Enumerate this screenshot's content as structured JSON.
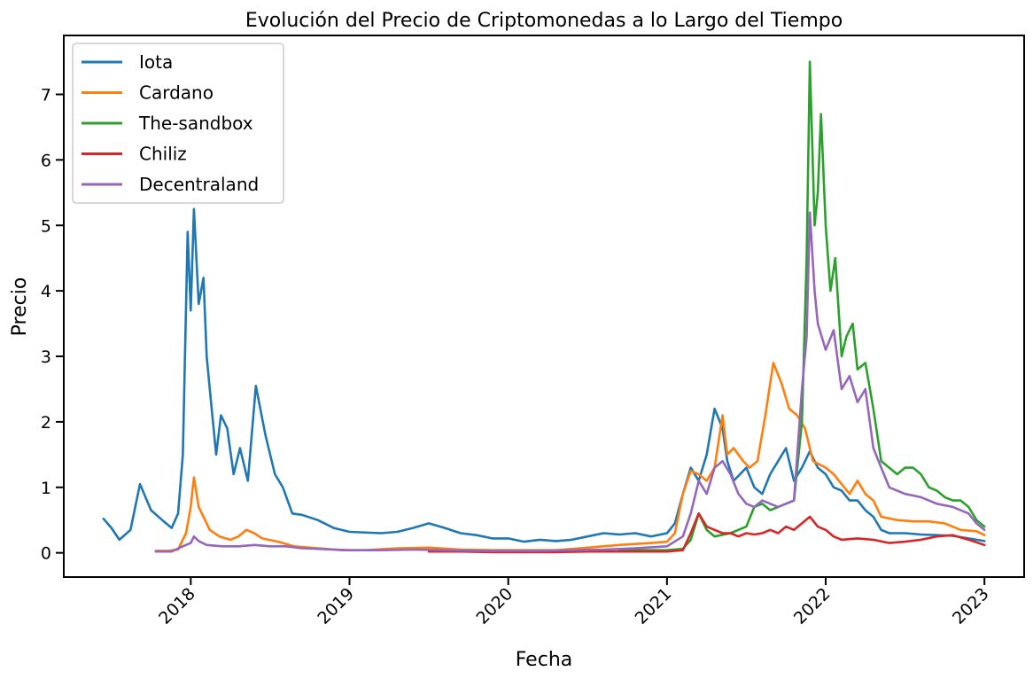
{
  "chart_data": {
    "type": "line",
    "title": "Evolución del Precio de Criptomonedas a lo Largo del Tiempo",
    "xlabel": "Fecha",
    "ylabel": "Precio",
    "xlim": [
      2017.2,
      2023.25
    ],
    "ylim": [
      -0.37,
      7.9
    ],
    "x_ticks": [
      2018,
      2019,
      2020,
      2021,
      2022,
      2023
    ],
    "x_tick_labels": [
      "2018",
      "2019",
      "2020",
      "2021",
      "2022",
      "2023"
    ],
    "y_ticks": [
      0,
      1,
      2,
      3,
      4,
      5,
      6,
      7
    ],
    "y_tick_labels": [
      "0",
      "1",
      "2",
      "3",
      "4",
      "5",
      "6",
      "7"
    ],
    "grid": false,
    "legend_position": "top-left",
    "series": [
      {
        "name": "Iota",
        "color": "#1f77b4",
        "points": [
          [
            2017.45,
            0.52
          ],
          [
            2017.5,
            0.38
          ],
          [
            2017.55,
            0.2
          ],
          [
            2017.62,
            0.35
          ],
          [
            2017.68,
            1.05
          ],
          [
            2017.75,
            0.65
          ],
          [
            2017.82,
            0.5
          ],
          [
            2017.88,
            0.38
          ],
          [
            2017.92,
            0.6
          ],
          [
            2017.95,
            1.5
          ],
          [
            2017.98,
            4.9
          ],
          [
            2018.0,
            3.7
          ],
          [
            2018.02,
            5.25
          ],
          [
            2018.05,
            3.8
          ],
          [
            2018.08,
            4.2
          ],
          [
            2018.1,
            3.0
          ],
          [
            2018.12,
            2.5
          ],
          [
            2018.16,
            1.5
          ],
          [
            2018.19,
            2.1
          ],
          [
            2018.23,
            1.9
          ],
          [
            2018.27,
            1.2
          ],
          [
            2018.31,
            1.6
          ],
          [
            2018.36,
            1.1
          ],
          [
            2018.41,
            2.55
          ],
          [
            2018.47,
            1.8
          ],
          [
            2018.53,
            1.2
          ],
          [
            2018.58,
            1.0
          ],
          [
            2018.64,
            0.6
          ],
          [
            2018.7,
            0.58
          ],
          [
            2018.8,
            0.5
          ],
          [
            2018.9,
            0.38
          ],
          [
            2019.0,
            0.32
          ],
          [
            2019.2,
            0.3
          ],
          [
            2019.3,
            0.32
          ],
          [
            2019.4,
            0.38
          ],
          [
            2019.5,
            0.45
          ],
          [
            2019.6,
            0.38
          ],
          [
            2019.7,
            0.3
          ],
          [
            2019.8,
            0.27
          ],
          [
            2019.9,
            0.22
          ],
          [
            2020.0,
            0.22
          ],
          [
            2020.1,
            0.17
          ],
          [
            2020.2,
            0.2
          ],
          [
            2020.3,
            0.18
          ],
          [
            2020.4,
            0.2
          ],
          [
            2020.5,
            0.25
          ],
          [
            2020.6,
            0.3
          ],
          [
            2020.7,
            0.28
          ],
          [
            2020.8,
            0.3
          ],
          [
            2020.9,
            0.25
          ],
          [
            2021.0,
            0.3
          ],
          [
            2021.05,
            0.45
          ],
          [
            2021.1,
            0.9
          ],
          [
            2021.15,
            1.3
          ],
          [
            2021.2,
            1.1
          ],
          [
            2021.25,
            1.5
          ],
          [
            2021.3,
            2.2
          ],
          [
            2021.35,
            1.9
          ],
          [
            2021.38,
            1.4
          ],
          [
            2021.42,
            1.1
          ],
          [
            2021.5,
            1.3
          ],
          [
            2021.55,
            1.0
          ],
          [
            2021.6,
            0.9
          ],
          [
            2021.65,
            1.2
          ],
          [
            2021.7,
            1.4
          ],
          [
            2021.75,
            1.6
          ],
          [
            2021.8,
            1.1
          ],
          [
            2021.85,
            1.3
          ],
          [
            2021.9,
            1.55
          ],
          [
            2021.95,
            1.3
          ],
          [
            2022.0,
            1.2
          ],
          [
            2022.05,
            1.0
          ],
          [
            2022.1,
            0.95
          ],
          [
            2022.15,
            0.8
          ],
          [
            2022.2,
            0.8
          ],
          [
            2022.25,
            0.65
          ],
          [
            2022.3,
            0.55
          ],
          [
            2022.35,
            0.35
          ],
          [
            2022.4,
            0.3
          ],
          [
            2022.5,
            0.3
          ],
          [
            2022.6,
            0.28
          ],
          [
            2022.7,
            0.27
          ],
          [
            2022.8,
            0.26
          ],
          [
            2022.9,
            0.22
          ],
          [
            2023.0,
            0.18
          ]
        ]
      },
      {
        "name": "Cardano",
        "color": "#ff7f0e",
        "points": [
          [
            2017.78,
            0.03
          ],
          [
            2017.85,
            0.03
          ],
          [
            2017.92,
            0.05
          ],
          [
            2017.97,
            0.3
          ],
          [
            2018.0,
            0.7
          ],
          [
            2018.02,
            1.15
          ],
          [
            2018.05,
            0.7
          ],
          [
            2018.08,
            0.55
          ],
          [
            2018.12,
            0.35
          ],
          [
            2018.18,
            0.25
          ],
          [
            2018.25,
            0.2
          ],
          [
            2018.3,
            0.25
          ],
          [
            2018.35,
            0.35
          ],
          [
            2018.4,
            0.3
          ],
          [
            2018.45,
            0.22
          ],
          [
            2018.55,
            0.17
          ],
          [
            2018.65,
            0.1
          ],
          [
            2018.75,
            0.08
          ],
          [
            2018.85,
            0.06
          ],
          [
            2018.95,
            0.04
          ],
          [
            2019.1,
            0.04
          ],
          [
            2019.3,
            0.07
          ],
          [
            2019.5,
            0.08
          ],
          [
            2019.7,
            0.05
          ],
          [
            2019.9,
            0.04
          ],
          [
            2020.1,
            0.04
          ],
          [
            2020.3,
            0.04
          ],
          [
            2020.5,
            0.08
          ],
          [
            2020.7,
            0.12
          ],
          [
            2020.9,
            0.15
          ],
          [
            2021.0,
            0.17
          ],
          [
            2021.05,
            0.3
          ],
          [
            2021.1,
            0.9
          ],
          [
            2021.15,
            1.25
          ],
          [
            2021.2,
            1.2
          ],
          [
            2021.25,
            1.1
          ],
          [
            2021.3,
            1.3
          ],
          [
            2021.35,
            2.1
          ],
          [
            2021.38,
            1.5
          ],
          [
            2021.42,
            1.6
          ],
          [
            2021.48,
            1.4
          ],
          [
            2021.52,
            1.3
          ],
          [
            2021.57,
            1.4
          ],
          [
            2021.62,
            2.1
          ],
          [
            2021.67,
            2.9
          ],
          [
            2021.72,
            2.6
          ],
          [
            2021.77,
            2.2
          ],
          [
            2021.82,
            2.1
          ],
          [
            2021.87,
            1.9
          ],
          [
            2021.92,
            1.4
          ],
          [
            2022.0,
            1.3
          ],
          [
            2022.05,
            1.2
          ],
          [
            2022.1,
            1.05
          ],
          [
            2022.15,
            0.9
          ],
          [
            2022.2,
            1.1
          ],
          [
            2022.25,
            0.9
          ],
          [
            2022.3,
            0.8
          ],
          [
            2022.35,
            0.55
          ],
          [
            2022.45,
            0.5
          ],
          [
            2022.55,
            0.48
          ],
          [
            2022.65,
            0.48
          ],
          [
            2022.75,
            0.45
          ],
          [
            2022.85,
            0.35
          ],
          [
            2022.95,
            0.33
          ],
          [
            2023.0,
            0.27
          ]
        ]
      },
      {
        "name": "The-sandbox",
        "color": "#2ca02c",
        "points": [
          [
            2020.7,
            0.04
          ],
          [
            2020.85,
            0.04
          ],
          [
            2021.0,
            0.04
          ],
          [
            2021.1,
            0.06
          ],
          [
            2021.15,
            0.2
          ],
          [
            2021.2,
            0.6
          ],
          [
            2021.25,
            0.35
          ],
          [
            2021.3,
            0.25
          ],
          [
            2021.4,
            0.3
          ],
          [
            2021.5,
            0.4
          ],
          [
            2021.55,
            0.7
          ],
          [
            2021.6,
            0.75
          ],
          [
            2021.65,
            0.65
          ],
          [
            2021.7,
            0.7
          ],
          [
            2021.75,
            0.75
          ],
          [
            2021.8,
            0.8
          ],
          [
            2021.85,
            2.0
          ],
          [
            2021.88,
            4.5
          ],
          [
            2021.9,
            7.5
          ],
          [
            2021.93,
            5.0
          ],
          [
            2021.95,
            5.5
          ],
          [
            2021.97,
            6.7
          ],
          [
            2022.0,
            5.0
          ],
          [
            2022.03,
            4.0
          ],
          [
            2022.06,
            4.5
          ],
          [
            2022.1,
            3.0
          ],
          [
            2022.13,
            3.3
          ],
          [
            2022.17,
            3.5
          ],
          [
            2022.2,
            2.8
          ],
          [
            2022.25,
            2.9
          ],
          [
            2022.3,
            2.2
          ],
          [
            2022.35,
            1.4
          ],
          [
            2022.4,
            1.3
          ],
          [
            2022.45,
            1.2
          ],
          [
            2022.5,
            1.3
          ],
          [
            2022.55,
            1.3
          ],
          [
            2022.6,
            1.2
          ],
          [
            2022.65,
            1.0
          ],
          [
            2022.7,
            0.95
          ],
          [
            2022.75,
            0.85
          ],
          [
            2022.8,
            0.8
          ],
          [
            2022.85,
            0.8
          ],
          [
            2022.9,
            0.7
          ],
          [
            2022.95,
            0.5
          ],
          [
            2023.0,
            0.4
          ]
        ]
      },
      {
        "name": "Chiliz",
        "color": "#d62728",
        "points": [
          [
            2019.5,
            0.02
          ],
          [
            2019.7,
            0.02
          ],
          [
            2019.9,
            0.01
          ],
          [
            2020.1,
            0.01
          ],
          [
            2020.3,
            0.01
          ],
          [
            2020.5,
            0.02
          ],
          [
            2020.7,
            0.02
          ],
          [
            2020.9,
            0.02
          ],
          [
            2021.0,
            0.02
          ],
          [
            2021.1,
            0.04
          ],
          [
            2021.15,
            0.3
          ],
          [
            2021.2,
            0.6
          ],
          [
            2021.25,
            0.4
          ],
          [
            2021.3,
            0.35
          ],
          [
            2021.35,
            0.3
          ],
          [
            2021.4,
            0.3
          ],
          [
            2021.45,
            0.25
          ],
          [
            2021.5,
            0.3
          ],
          [
            2021.55,
            0.28
          ],
          [
            2021.6,
            0.3
          ],
          [
            2021.65,
            0.35
          ],
          [
            2021.7,
            0.3
          ],
          [
            2021.75,
            0.4
          ],
          [
            2021.8,
            0.35
          ],
          [
            2021.85,
            0.45
          ],
          [
            2021.9,
            0.55
          ],
          [
            2021.95,
            0.4
          ],
          [
            2022.0,
            0.35
          ],
          [
            2022.05,
            0.25
          ],
          [
            2022.1,
            0.2
          ],
          [
            2022.2,
            0.22
          ],
          [
            2022.3,
            0.2
          ],
          [
            2022.4,
            0.15
          ],
          [
            2022.5,
            0.17
          ],
          [
            2022.6,
            0.2
          ],
          [
            2022.7,
            0.25
          ],
          [
            2022.8,
            0.27
          ],
          [
            2022.9,
            0.2
          ],
          [
            2023.0,
            0.12
          ]
        ]
      },
      {
        "name": "Decentraland",
        "color": "#9467bd",
        "points": [
          [
            2017.78,
            0.02
          ],
          [
            2017.88,
            0.02
          ],
          [
            2017.95,
            0.1
          ],
          [
            2018.0,
            0.15
          ],
          [
            2018.02,
            0.25
          ],
          [
            2018.05,
            0.18
          ],
          [
            2018.1,
            0.12
          ],
          [
            2018.2,
            0.1
          ],
          [
            2018.3,
            0.1
          ],
          [
            2018.4,
            0.12
          ],
          [
            2018.5,
            0.1
          ],
          [
            2018.6,
            0.1
          ],
          [
            2018.7,
            0.07
          ],
          [
            2018.8,
            0.06
          ],
          [
            2018.9,
            0.05
          ],
          [
            2019.0,
            0.04
          ],
          [
            2019.2,
            0.04
          ],
          [
            2019.4,
            0.05
          ],
          [
            2019.6,
            0.04
          ],
          [
            2019.8,
            0.03
          ],
          [
            2020.0,
            0.03
          ],
          [
            2020.2,
            0.03
          ],
          [
            2020.4,
            0.04
          ],
          [
            2020.6,
            0.05
          ],
          [
            2020.8,
            0.07
          ],
          [
            2021.0,
            0.1
          ],
          [
            2021.1,
            0.25
          ],
          [
            2021.15,
            0.6
          ],
          [
            2021.2,
            1.1
          ],
          [
            2021.25,
            0.9
          ],
          [
            2021.3,
            1.3
          ],
          [
            2021.35,
            1.4
          ],
          [
            2021.4,
            1.2
          ],
          [
            2021.45,
            0.9
          ],
          [
            2021.5,
            0.75
          ],
          [
            2021.55,
            0.7
          ],
          [
            2021.6,
            0.8
          ],
          [
            2021.65,
            0.75
          ],
          [
            2021.7,
            0.7
          ],
          [
            2021.75,
            0.75
          ],
          [
            2021.8,
            0.8
          ],
          [
            2021.85,
            2.5
          ],
          [
            2021.88,
            3.3
          ],
          [
            2021.9,
            5.2
          ],
          [
            2021.93,
            4.0
          ],
          [
            2021.95,
            3.5
          ],
          [
            2022.0,
            3.1
          ],
          [
            2022.05,
            3.4
          ],
          [
            2022.1,
            2.5
          ],
          [
            2022.15,
            2.7
          ],
          [
            2022.2,
            2.3
          ],
          [
            2022.25,
            2.5
          ],
          [
            2022.3,
            1.6
          ],
          [
            2022.35,
            1.3
          ],
          [
            2022.4,
            1.0
          ],
          [
            2022.5,
            0.9
          ],
          [
            2022.6,
            0.85
          ],
          [
            2022.7,
            0.75
          ],
          [
            2022.8,
            0.7
          ],
          [
            2022.9,
            0.6
          ],
          [
            2022.95,
            0.45
          ],
          [
            2023.0,
            0.35
          ]
        ]
      }
    ]
  }
}
